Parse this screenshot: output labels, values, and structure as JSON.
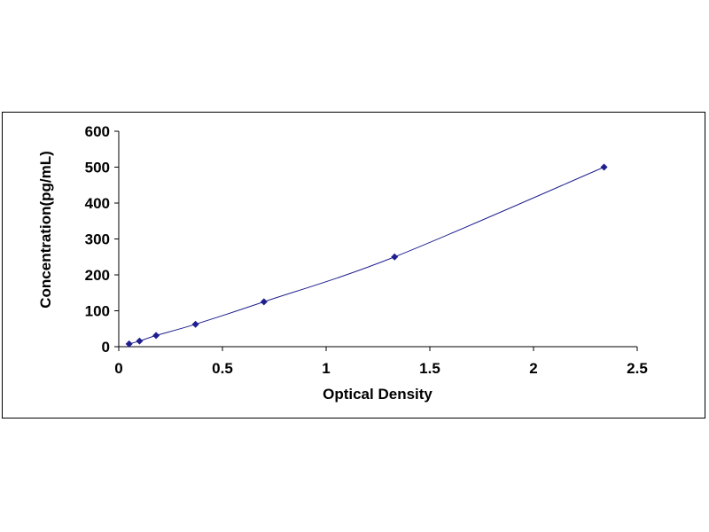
{
  "chart_data": {
    "type": "scatter",
    "title": "",
    "xlabel": "Optical Density",
    "ylabel": "Concentration(pg/mL)",
    "xlim": [
      0,
      2.5
    ],
    "ylim": [
      0,
      600
    ],
    "x_ticks": [
      "0",
      "0.5",
      "1",
      "1.5",
      "2",
      "2.5"
    ],
    "y_ticks": [
      "0",
      "100",
      "200",
      "300",
      "400",
      "500",
      "600"
    ],
    "grid": false,
    "legend": "none",
    "series": [
      {
        "x": [
          0.05,
          0.1,
          0.18,
          0.37,
          0.7,
          1.33,
          2.34
        ],
        "y": [
          7.8,
          15.6,
          31.2,
          62.5,
          125,
          250,
          500
        ],
        "marker": "diamond",
        "fit_line": true
      }
    ],
    "colors": {
      "marker": "#1f1f8f",
      "line": "#1f1f8f",
      "axis": "#000000"
    }
  }
}
